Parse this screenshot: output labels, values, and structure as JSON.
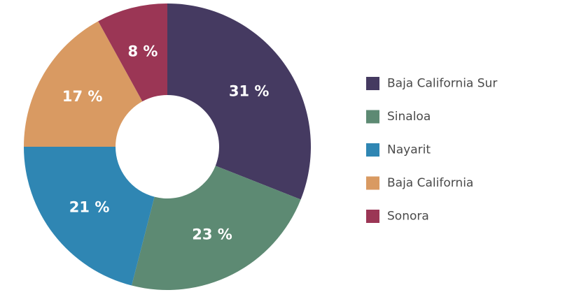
{
  "chart_data": {
    "type": "pie",
    "donut": true,
    "legend_position": "right",
    "slices": [
      {
        "name": "Baja California Sur",
        "value": 31,
        "label": "31 %",
        "color": "#453a61"
      },
      {
        "name": "Sinaloa",
        "value": 23,
        "label": "23 %",
        "color": "#5d8a73"
      },
      {
        "name": "Nayarit",
        "value": 21,
        "label": "21 %",
        "color": "#2f86b3"
      },
      {
        "name": "Baja California",
        "value": 17,
        "label": "17 %",
        "color": "#d99a62"
      },
      {
        "name": "Sonora",
        "value": 8,
        "label": "8 %",
        "color": "#9b3655"
      }
    ]
  }
}
